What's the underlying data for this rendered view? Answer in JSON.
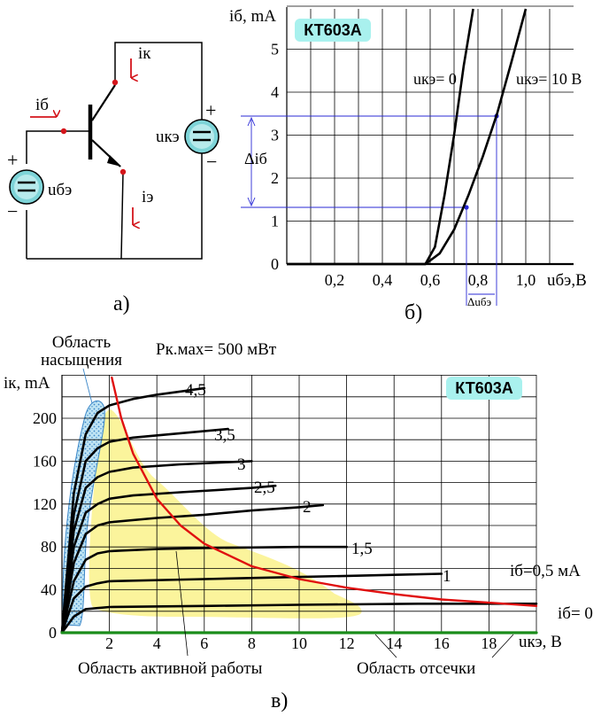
{
  "circuit": {
    "label_ik": "iк",
    "label_ib": "iб",
    "label_ie": "iэ",
    "label_uke": "uкэ",
    "label_ube": "uбэ",
    "plus": "+",
    "minus": "−",
    "caption": "а)"
  },
  "input_chart": {
    "ylabel": "iб, mA",
    "xlabel": "uбэ,В",
    "badge": "КТ603А",
    "caption": "б)",
    "y_ticks": [
      "0",
      "1",
      "2",
      "3",
      "4",
      "5"
    ],
    "x_ticks": [
      "0,2",
      "0,4",
      "0,6",
      "0,8",
      "1,0"
    ],
    "curve_label_0": "uкэ= 0",
    "curve_label_10": "uкэ= 10 В",
    "delta_ib": "Δiб",
    "delta_ube": "Δuбэ"
  },
  "output_chart": {
    "ylabel": "iк, mA",
    "xlabel": "uкэ, В",
    "badge": "КТ603А",
    "caption": "в)",
    "pmax_label": "Pк.мах= 500 мВт",
    "region_saturation": "Область насыщения",
    "region_active": "Область активной работы",
    "region_cutoff": "Область отсечки",
    "y_ticks": [
      "0",
      "40",
      "80",
      "120",
      "160",
      "200"
    ],
    "x_ticks": [
      "2",
      "4",
      "6",
      "8",
      "10",
      "12",
      "14",
      "16",
      "18"
    ],
    "curve_labels": [
      "4,5",
      "3,5",
      "3",
      "2,5",
      "2",
      "1,5",
      "1",
      "iб=0,5 мА",
      "iб= 0"
    ]
  },
  "colors": {
    "accent_red": "#d4151b",
    "hyperbola": "#e01010",
    "cutoff_green": "#1a8c1a",
    "active_fill": "#fbf49c",
    "saturation_fill": "#bfe4f4",
    "badge_bg": "#a9f1ee",
    "grid": "#000000",
    "helper_lines": "#2a2ad6"
  },
  "chart_data": [
    {
      "type": "line",
      "title": "КТ603А",
      "xlabel": "uбэ,В",
      "ylabel": "iб, mA",
      "xlim": [
        0,
        1.1
      ],
      "ylim": [
        0,
        6
      ],
      "series": [
        {
          "name": "uкэ= 0",
          "x": [
            0.0,
            0.58,
            0.62,
            0.66,
            0.7,
            0.74,
            0.78
          ],
          "y": [
            0.0,
            0.0,
            0.4,
            1.6,
            3.0,
            4.6,
            6.0
          ]
        },
        {
          "name": "uкэ= 10 В",
          "x": [
            0.0,
            0.58,
            0.64,
            0.7,
            0.76,
            0.82,
            0.88,
            0.94,
            1.0
          ],
          "y": [
            0.0,
            0.0,
            0.25,
            0.8,
            1.6,
            2.5,
            3.5,
            4.7,
            6.0
          ]
        }
      ]
    },
    {
      "type": "line",
      "title": "КТ603А",
      "xlabel": "uкэ, В",
      "ylabel": "iк, mA",
      "xlim": [
        0,
        20
      ],
      "ylim": [
        0,
        240
      ],
      "series": [
        {
          "name": "4,5",
          "x": [
            0,
            0.5,
            1,
            1.5,
            2,
            3,
            4,
            5,
            6
          ],
          "y": [
            0,
            130,
            185,
            205,
            212,
            218,
            222,
            225,
            228
          ]
        },
        {
          "name": "3,5",
          "x": [
            0,
            0.5,
            1,
            1.5,
            2,
            3,
            5,
            7
          ],
          "y": [
            0,
            110,
            160,
            172,
            178,
            182,
            186,
            190
          ]
        },
        {
          "name": "3",
          "x": [
            0,
            0.5,
            1,
            1.5,
            2,
            3,
            5,
            7,
            8
          ],
          "y": [
            0,
            95,
            135,
            145,
            150,
            154,
            157,
            159,
            160
          ]
        },
        {
          "name": "2,5",
          "x": [
            0,
            0.5,
            1,
            1.5,
            2,
            3,
            5,
            8,
            9
          ],
          "y": [
            0,
            80,
            112,
            120,
            125,
            128,
            131,
            135,
            137
          ]
        },
        {
          "name": "2",
          "x": [
            0,
            0.5,
            1,
            1.5,
            2,
            4,
            6,
            8,
            10,
            11
          ],
          "y": [
            0,
            65,
            92,
            100,
            103,
            107,
            110,
            114,
            117,
            119
          ]
        },
        {
          "name": "1,5",
          "x": [
            0,
            0.5,
            1,
            1.5,
            2,
            4,
            6,
            10,
            12
          ],
          "y": [
            0,
            48,
            68,
            74,
            76,
            78,
            79,
            80,
            80
          ]
        },
        {
          "name": "1",
          "x": [
            0,
            0.5,
            1,
            1.5,
            2,
            6,
            10,
            14,
            16
          ],
          "y": [
            0,
            32,
            43,
            46,
            48,
            50,
            52,
            54,
            55
          ]
        },
        {
          "name": "iб=0,5 мА",
          "x": [
            0,
            0.5,
            1,
            1.5,
            2,
            6,
            10,
            15,
            20
          ],
          "y": [
            0,
            15,
            22,
            23,
            24,
            25,
            26,
            27,
            27
          ]
        },
        {
          "name": "iб= 0",
          "x": [
            0,
            20
          ],
          "y": [
            0,
            0
          ]
        },
        {
          "name": "Pк.мах= 500 мВт",
          "x": [
            2.1,
            2.5,
            3,
            4,
            5,
            6,
            8,
            10,
            12,
            14,
            16,
            18,
            20
          ],
          "y": [
            238,
            200,
            167,
            125,
            100,
            83,
            62,
            50,
            42,
            36,
            31,
            28,
            25
          ]
        }
      ]
    }
  ]
}
